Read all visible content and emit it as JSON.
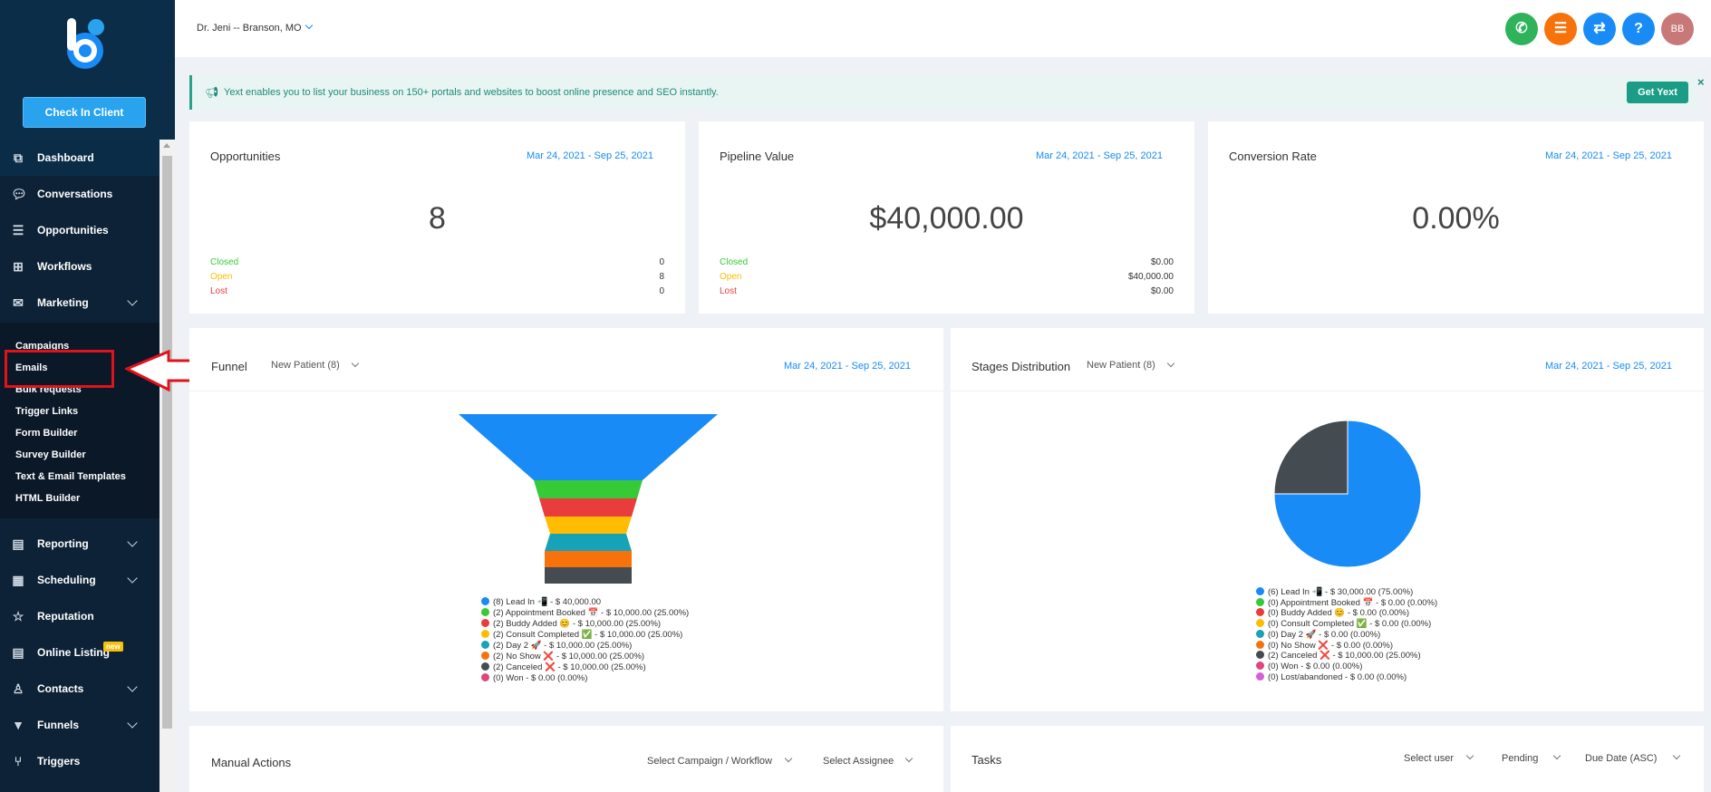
{
  "sidebar": {
    "check_in_label": "Check In Client",
    "items": [
      {
        "label": "Dashboard",
        "icon": "copy-icon"
      },
      {
        "label": "Conversations",
        "icon": "chat-icon"
      },
      {
        "label": "Opportunities",
        "icon": "list-icon"
      },
      {
        "label": "Workflows",
        "icon": "sitemap-icon"
      },
      {
        "label": "Marketing",
        "icon": "envelope-icon"
      },
      {
        "label": "Reporting",
        "icon": "chart-icon"
      },
      {
        "label": "Scheduling",
        "icon": "calendar-icon"
      },
      {
        "label": "Reputation",
        "icon": "star-icon"
      },
      {
        "label": "Online Listing",
        "icon": "list-alt-icon",
        "badge": "new"
      },
      {
        "label": "Contacts",
        "icon": "user-icon"
      },
      {
        "label": "Funnels",
        "icon": "filter-icon"
      },
      {
        "label": "Triggers",
        "icon": "branch-icon"
      }
    ],
    "marketing_sub": [
      "Campaigns",
      "Emails",
      "Bulk requests",
      "Trigger Links",
      "Form Builder",
      "Survey Builder",
      "Text & Email Templates",
      "HTML Builder"
    ]
  },
  "header": {
    "location": "Dr. Jeni -- Branson, MO",
    "avatar_initials": "BB"
  },
  "banner": {
    "text": "Yext enables you to list your business on 150+ portals and websites to boost online presence and SEO instantly.",
    "button": "Get Yext",
    "close": "×"
  },
  "cards": [
    {
      "title": "Opportunities",
      "date": "Mar 24, 2021 - Sep 25, 2021",
      "big": "8",
      "rows": [
        {
          "label": "Closed",
          "value": "0"
        },
        {
          "label": "Open",
          "value": "8"
        },
        {
          "label": "Lost",
          "value": "0"
        }
      ]
    },
    {
      "title": "Pipeline Value",
      "date": "Mar 24, 2021 - Sep 25, 2021",
      "big": "$40,000.00",
      "rows": [
        {
          "label": "Closed",
          "value": "$0.00"
        },
        {
          "label": "Open",
          "value": "$40,000.00"
        },
        {
          "label": "Lost",
          "value": "$0.00"
        }
      ]
    },
    {
      "title": "Conversion Rate",
      "date": "Mar 24, 2021 - Sep 25, 2021",
      "big": "0.00%",
      "rows": []
    }
  ],
  "funnel": {
    "title": "Funnel",
    "select": "New Patient (8)",
    "date": "Mar 24, 2021 - Sep 25, 2021",
    "legend": [
      "(8) Lead In 📲 - $ 40,000.00",
      "(2) Appointment Booked 📅 - $ 10,000.00 (25.00%)",
      "(2) Buddy Added 😊 - $ 10,000.00 (25.00%)",
      "(2) Consult Completed ✅ - $ 10,000.00 (25.00%)",
      "(2) Day 2 🚀 - $ 10,000.00 (25.00%)",
      "(2) No Show ❌ - $ 10,000.00 (25.00%)",
      "(2) Canceled ❌ - $ 10,000.00 (25.00%)",
      "(0) Won - $ 0.00 (0.00%)"
    ]
  },
  "stages": {
    "title": "Stages Distribution",
    "select": "New Patient (8)",
    "date": "Mar 24, 2021 - Sep 25, 2021",
    "legend": [
      "(6) Lead In 📲 - $ 30,000.00 (75.00%)",
      "(0) Appointment Booked 📅 - $ 0.00 (0.00%)",
      "(0) Buddy Added 😊 - $ 0.00 (0.00%)",
      "(0) Consult Completed ✅ - $ 0.00 (0.00%)",
      "(0) Day 2 🚀 - $ 0.00 (0.00%)",
      "(0) No Show ❌ - $ 0.00 (0.00%)",
      "(2) Canceled ❌ - $ 10,000.00 (25.00%)",
      "(0) Won - $ 0.00 (0.00%)",
      "(0) Lost/abandoned - $ 0.00 (0.00%)"
    ]
  },
  "manual_actions": {
    "title": "Manual Actions",
    "campaign_select": "Select Campaign / Workflow",
    "assignee_select": "Select Assignee"
  },
  "tasks": {
    "title": "Tasks",
    "user_select": "Select user",
    "status_select": "Pending",
    "sort_select": "Due Date (ASC)"
  },
  "colors": {
    "funnel": [
      "#188bf6",
      "#37ca37",
      "#e93d3d",
      "#ffbc00",
      "#17a2b8",
      "#f7720a",
      "#444b51",
      "#e0457b"
    ],
    "stages": [
      "#188bf6",
      "#37ca37",
      "#e93d3d",
      "#ffbc00",
      "#17a2b8",
      "#f7720a",
      "#444b51",
      "#e0457b",
      "#d75ddb"
    ],
    "closed": "#37ca37",
    "open": "#ffbc00",
    "lost": "#e93d3d"
  },
  "chart_data": [
    {
      "type": "funnel",
      "categories": [
        "Lead In",
        "Appointment Booked",
        "Buddy Added",
        "Consult Completed",
        "Day 2",
        "No Show",
        "Canceled",
        "Won"
      ],
      "values": [
        8,
        2,
        2,
        2,
        2,
        2,
        2,
        0
      ]
    },
    {
      "type": "pie",
      "categories": [
        "Lead In",
        "Canceled"
      ],
      "values": [
        75,
        25
      ]
    }
  ]
}
